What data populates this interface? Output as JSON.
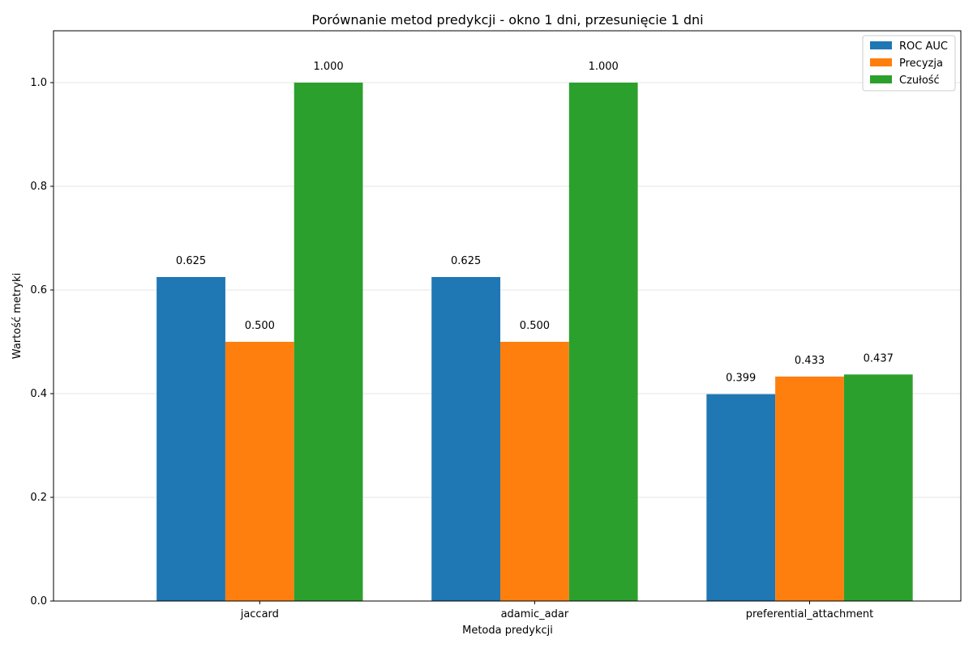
{
  "chart_data": {
    "type": "bar",
    "title": "Porównanie metod predykcji - okno 1 dni, przesunięcie 1 dni",
    "xlabel": "Metoda predykcji",
    "ylabel": "Wartość metryki",
    "categories": [
      "jaccard",
      "adamic_adar",
      "preferential_attachment"
    ],
    "series": [
      {
        "name": "ROC AUC",
        "color": "#1f77b4",
        "values": [
          0.625,
          0.625,
          0.399
        ],
        "labels": [
          "0.625",
          "0.625",
          "0.399"
        ]
      },
      {
        "name": "Precyzja",
        "color": "#ff7f0e",
        "values": [
          0.5,
          0.5,
          0.433
        ],
        "labels": [
          "0.500",
          "0.500",
          "0.433"
        ]
      },
      {
        "name": "Czułość",
        "color": "#2ca02c",
        "values": [
          1.0,
          1.0,
          0.437
        ],
        "labels": [
          "1.000",
          "1.000",
          "0.437"
        ]
      }
    ],
    "ylim": [
      0,
      1.1
    ],
    "yticks": [
      0.0,
      0.2,
      0.4,
      0.6,
      0.8,
      1.0
    ],
    "ytick_labels": [
      "0.0",
      "0.2",
      "0.4",
      "0.6",
      "0.8",
      "1.0"
    ],
    "grid": "y",
    "legend": "top-right"
  }
}
